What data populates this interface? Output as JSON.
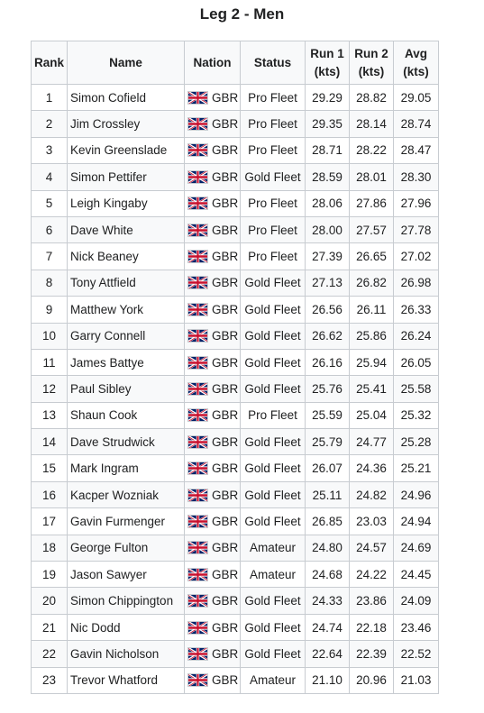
{
  "title": "Leg 2 - Men",
  "headers": {
    "rank": "Rank",
    "name": "Name",
    "nation": "Nation",
    "status": "Status",
    "run1_a": "Run 1",
    "run1_b": "(kts)",
    "run2_a": "Run 2",
    "run2_b": "(kts)",
    "avg_a": "Avg",
    "avg_b": "(kts)"
  },
  "flag_icon": "uk-flag-icon",
  "colors": {
    "flag_blue": "#012169",
    "flag_red": "#C8102E",
    "header_bg": "#f8f9fa",
    "border": "#c8ccd1"
  },
  "rows": [
    {
      "rank": "1",
      "name": "Simon Cofield",
      "nation": "GBR",
      "status": "Pro Fleet",
      "run1": "29.29",
      "run2": "28.82",
      "avg": "29.05"
    },
    {
      "rank": "2",
      "name": "Jim Crossley",
      "nation": "GBR",
      "status": "Pro Fleet",
      "run1": "29.35",
      "run2": "28.14",
      "avg": "28.74"
    },
    {
      "rank": "3",
      "name": "Kevin Greenslade",
      "nation": "GBR",
      "status": "Pro Fleet",
      "run1": "28.71",
      "run2": "28.22",
      "avg": "28.47"
    },
    {
      "rank": "4",
      "name": "Simon Pettifer",
      "nation": "GBR",
      "status": "Gold Fleet",
      "run1": "28.59",
      "run2": "28.01",
      "avg": "28.30"
    },
    {
      "rank": "5",
      "name": "Leigh Kingaby",
      "nation": "GBR",
      "status": "Pro Fleet",
      "run1": "28.06",
      "run2": "27.86",
      "avg": "27.96"
    },
    {
      "rank": "6",
      "name": "Dave White",
      "nation": "GBR",
      "status": "Pro Fleet",
      "run1": "28.00",
      "run2": "27.57",
      "avg": "27.78"
    },
    {
      "rank": "7",
      "name": "Nick Beaney",
      "nation": "GBR",
      "status": "Pro Fleet",
      "run1": "27.39",
      "run2": "26.65",
      "avg": "27.02"
    },
    {
      "rank": "8",
      "name": "Tony Attfield",
      "nation": "GBR",
      "status": "Gold Fleet",
      "run1": "27.13",
      "run2": "26.82",
      "avg": "26.98"
    },
    {
      "rank": "9",
      "name": "Matthew York",
      "nation": "GBR",
      "status": "Gold Fleet",
      "run1": "26.56",
      "run2": "26.11",
      "avg": "26.33"
    },
    {
      "rank": "10",
      "name": "Garry Connell",
      "nation": "GBR",
      "status": "Gold Fleet",
      "run1": "26.62",
      "run2": "25.86",
      "avg": "26.24"
    },
    {
      "rank": "11",
      "name": "James Battye",
      "nation": "GBR",
      "status": "Gold Fleet",
      "run1": "26.16",
      "run2": "25.94",
      "avg": "26.05"
    },
    {
      "rank": "12",
      "name": "Paul Sibley",
      "nation": "GBR",
      "status": "Gold Fleet",
      "run1": "25.76",
      "run2": "25.41",
      "avg": "25.58"
    },
    {
      "rank": "13",
      "name": "Shaun Cook",
      "nation": "GBR",
      "status": "Pro Fleet",
      "run1": "25.59",
      "run2": "25.04",
      "avg": "25.32"
    },
    {
      "rank": "14",
      "name": "Dave Strudwick",
      "nation": "GBR",
      "status": "Gold Fleet",
      "run1": "25.79",
      "run2": "24.77",
      "avg": "25.28"
    },
    {
      "rank": "15",
      "name": "Mark Ingram",
      "nation": "GBR",
      "status": "Gold Fleet",
      "run1": "26.07",
      "run2": "24.36",
      "avg": "25.21"
    },
    {
      "rank": "16",
      "name": "Kacper Wozniak",
      "nation": "GBR",
      "status": "Gold Fleet",
      "run1": "25.11",
      "run2": "24.82",
      "avg": "24.96"
    },
    {
      "rank": "17",
      "name": "Gavin Furmenger",
      "nation": "GBR",
      "status": "Gold Fleet",
      "run1": "26.85",
      "run2": "23.03",
      "avg": "24.94"
    },
    {
      "rank": "18",
      "name": "George Fulton",
      "nation": "GBR",
      "status": "Amateur",
      "run1": "24.80",
      "run2": "24.57",
      "avg": "24.69"
    },
    {
      "rank": "19",
      "name": "Jason Sawyer",
      "nation": "GBR",
      "status": "Amateur",
      "run1": "24.68",
      "run2": "24.22",
      "avg": "24.45"
    },
    {
      "rank": "20",
      "name": "Simon Chippington",
      "nation": "GBR",
      "status": "Gold Fleet",
      "run1": "24.33",
      "run2": "23.86",
      "avg": "24.09"
    },
    {
      "rank": "21",
      "name": "Nic Dodd",
      "nation": "GBR",
      "status": "Gold Fleet",
      "run1": "24.74",
      "run2": "22.18",
      "avg": "23.46"
    },
    {
      "rank": "22",
      "name": "Gavin Nicholson",
      "nation": "GBR",
      "status": "Gold Fleet",
      "run1": "22.64",
      "run2": "22.39",
      "avg": "22.52"
    },
    {
      "rank": "23",
      "name": "Trevor Whatford",
      "nation": "GBR",
      "status": "Amateur",
      "run1": "21.10",
      "run2": "20.96",
      "avg": "21.03"
    }
  ]
}
